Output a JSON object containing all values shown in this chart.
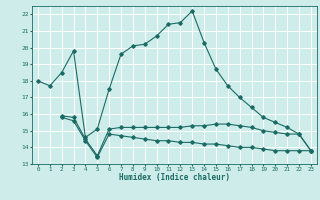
{
  "xlabel": "Humidex (Indice chaleur)",
  "bg_color": "#ceecea",
  "grid_color": "#ffffff",
  "line_color": "#1a6b64",
  "xlim": [
    -0.5,
    23.5
  ],
  "ylim": [
    13,
    22.5
  ],
  "yticks": [
    13,
    14,
    15,
    16,
    17,
    18,
    19,
    20,
    21,
    22
  ],
  "xticks": [
    0,
    1,
    2,
    3,
    4,
    5,
    6,
    7,
    8,
    9,
    10,
    11,
    12,
    13,
    14,
    15,
    16,
    17,
    18,
    19,
    20,
    21,
    22,
    23
  ],
  "series1_x": [
    0,
    1,
    2,
    3,
    4,
    5,
    6,
    7,
    8,
    9,
    10,
    11,
    12,
    13,
    14,
    15,
    16,
    17,
    18,
    19,
    20,
    21,
    22,
    23
  ],
  "series1_y": [
    18.0,
    17.7,
    18.5,
    19.8,
    14.6,
    15.1,
    17.5,
    19.6,
    20.1,
    20.2,
    20.7,
    21.4,
    21.5,
    22.2,
    20.3,
    18.7,
    17.7,
    17.0,
    16.4,
    15.8,
    15.5,
    15.2,
    14.8,
    13.8
  ],
  "series2_x": [
    2,
    3,
    4,
    5,
    6,
    7,
    8,
    9,
    10,
    11,
    12,
    13,
    14,
    15,
    16,
    17,
    18,
    19,
    20,
    21,
    22,
    23
  ],
  "series2_y": [
    15.9,
    15.8,
    14.5,
    13.5,
    15.1,
    15.2,
    15.2,
    15.2,
    15.2,
    15.2,
    15.2,
    15.3,
    15.3,
    15.4,
    15.4,
    15.3,
    15.2,
    15.0,
    14.9,
    14.8,
    14.8,
    13.8
  ],
  "series3_x": [
    2,
    3,
    4,
    5,
    6,
    7,
    8,
    9,
    10,
    11,
    12,
    13,
    14,
    15,
    16,
    17,
    18,
    19,
    20,
    21,
    22,
    23
  ],
  "series3_y": [
    15.8,
    15.6,
    14.4,
    13.4,
    14.8,
    14.7,
    14.6,
    14.5,
    14.4,
    14.4,
    14.3,
    14.3,
    14.2,
    14.2,
    14.1,
    14.0,
    14.0,
    13.9,
    13.8,
    13.8,
    13.8,
    13.8
  ]
}
